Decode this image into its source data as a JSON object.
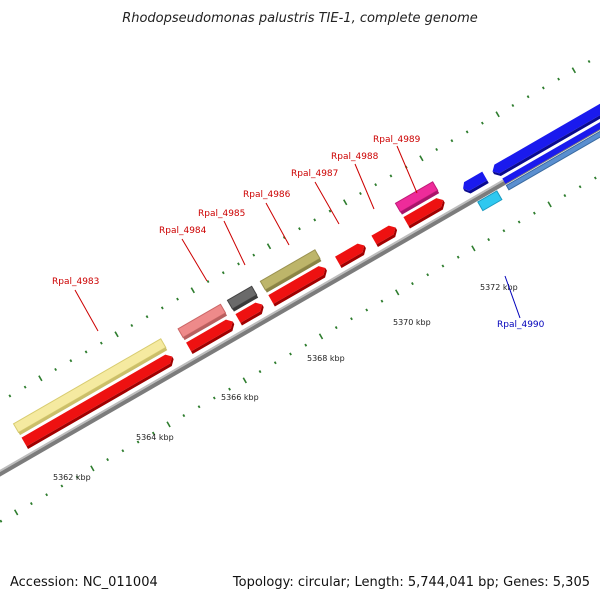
{
  "title": "Rhodopseudomonas palustris TIE-1, complete genome",
  "footer": {
    "accession": "Accession: NC_011004",
    "summary": "Topology: circular; Length: 5,744,041 bp; Genes: 5,305"
  },
  "colors": {
    "backbone": "#8a8a8a",
    "tick": "#2e7d2e",
    "label_red": "#cc0000",
    "label_blue": "#0000bb"
  },
  "scale_labels": [
    {
      "text": "5362 kbp",
      "kbp": 5362
    },
    {
      "text": "5364 kbp",
      "kbp": 5364
    },
    {
      "text": "5366 kbp",
      "kbp": 5366
    },
    {
      "text": "5368 kbp",
      "kbp": 5368
    },
    {
      "text": "5370 kbp",
      "kbp": 5370
    },
    {
      "text": "5372 kbp",
      "kbp": 5372
    }
  ],
  "genes": [
    {
      "id": "Rpal_4983",
      "label": "Rpal_4983",
      "label_color": "red"
    },
    {
      "id": "Rpal_4984",
      "label": "Rpal_4984",
      "label_color": "red"
    },
    {
      "id": "Rpal_4985",
      "label": "Rpal_4985",
      "label_color": "red"
    },
    {
      "id": "Rpal_4986",
      "label": "Rpal_4986",
      "label_color": "red"
    },
    {
      "id": "Rpal_4987",
      "label": "Rpal_4987",
      "label_color": "red"
    },
    {
      "id": "Rpal_4988",
      "label": "Rpal_4988",
      "label_color": "red"
    },
    {
      "id": "Rpal_4989",
      "label": "Rpal_4989",
      "label_color": "red"
    },
    {
      "id": "Rpal_4990",
      "label": "Rpal_4990",
      "label_color": "blue"
    }
  ]
}
